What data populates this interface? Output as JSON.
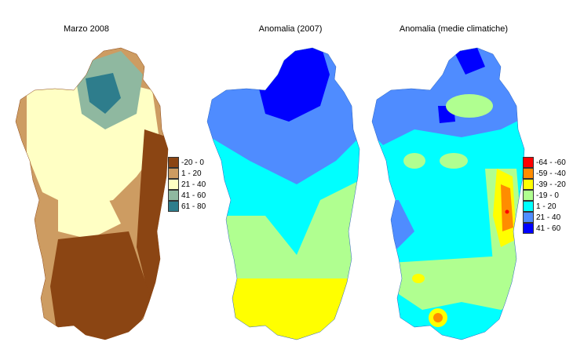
{
  "maps": [
    {
      "title": "Marzo 2008",
      "legend": [
        {
          "label": "-20 - 0",
          "color": "#8B4513"
        },
        {
          "label": "1 - 20",
          "color": "#CD9C62"
        },
        {
          "label": "21 - 40",
          "color": "#FFFFC4"
        },
        {
          "label": "41 - 60",
          "color": "#8FB8A0"
        },
        {
          "label": "61 - 80",
          "color": "#2E7D8C"
        }
      ]
    },
    {
      "title": "Anomalia (2007)",
      "legend": []
    },
    {
      "title": "Anomalia (medie climatiche)",
      "legend": [
        {
          "label": "-64 - -60",
          "color": "#FF0000"
        },
        {
          "label": "-59 - -40",
          "color": "#FF8C00"
        },
        {
          "label": "-39 - -20",
          "color": "#FFFF00"
        },
        {
          "label": "-19 - 0",
          "color": "#B0FF90"
        },
        {
          "label": "1 - 20",
          "color": "#00FFFF"
        },
        {
          "label": "21 - 40",
          "color": "#4F8CFF"
        },
        {
          "label": "41 - 60",
          "color": "#0000FF"
        }
      ]
    }
  ]
}
